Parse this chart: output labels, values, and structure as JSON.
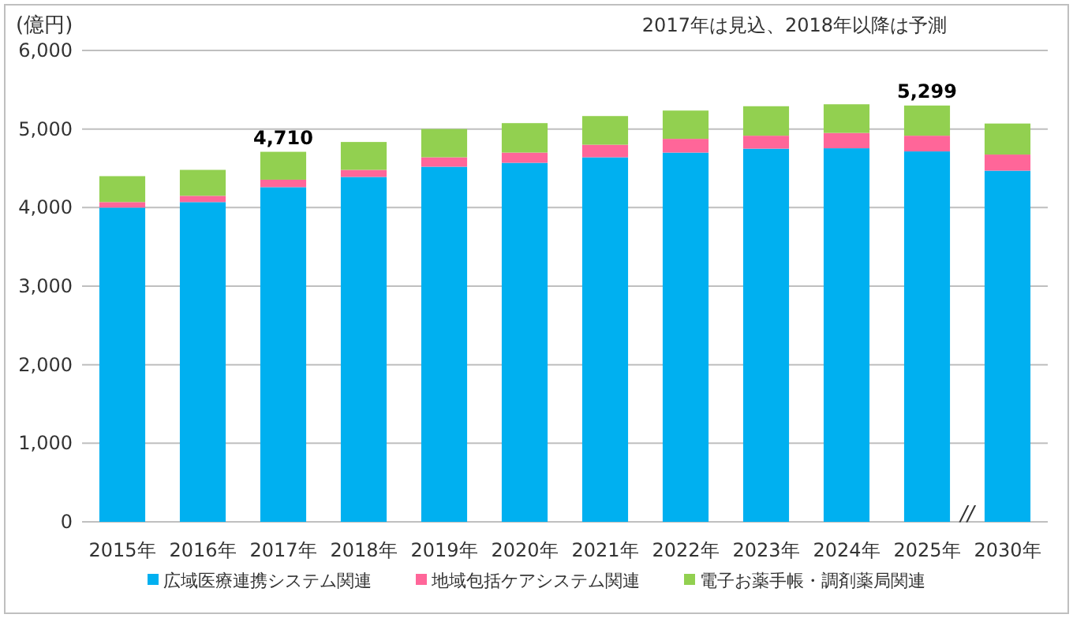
{
  "chart_data": {
    "type": "bar",
    "stacked": true,
    "ylabel": "(億円)",
    "annotations": [
      "2017年は見込、2018年以降は予測",
      "//"
    ],
    "categories": [
      "2015年",
      "2016年",
      "2017年",
      "2018年",
      "2019年",
      "2020年",
      "2021年",
      "2022年",
      "2023年",
      "2024年",
      "2025年",
      "2030年"
    ],
    "series": [
      {
        "name": "広域医療連携システム関連",
        "color": "#00b0f0",
        "values": [
          4000,
          4070,
          4260,
          4390,
          4520,
          4570,
          4640,
          4700,
          4750,
          4755,
          4715,
          4470
        ]
      },
      {
        "name": "地域包括ケアシステム関連",
        "color": "#ff6699",
        "values": [
          70,
          80,
          95,
          90,
          120,
          130,
          160,
          175,
          165,
          195,
          200,
          205
        ]
      },
      {
        "name": "電子お薬手帳・調剤薬局関連",
        "color": "#92d050",
        "values": [
          330,
          330,
          355,
          355,
          360,
          375,
          365,
          360,
          375,
          365,
          384,
          395
        ]
      }
    ],
    "totals": [
      null,
      null,
      "4,710",
      null,
      null,
      null,
      null,
      null,
      null,
      null,
      "5,299",
      null
    ],
    "ylim": [
      0,
      6000
    ],
    "yticks": [
      0,
      {
        "value": 1000,
        "label": "1,000"
      },
      {
        "value": 2000,
        "label": "2,000"
      },
      {
        "value": 3000,
        "label": "3,000"
      },
      {
        "value": 4000,
        "label": "4,000"
      },
      {
        "value": 5000,
        "label": "5,000"
      },
      {
        "value": 6000,
        "label": "6,000"
      }
    ],
    "grid": "y",
    "legend": "bottom"
  }
}
